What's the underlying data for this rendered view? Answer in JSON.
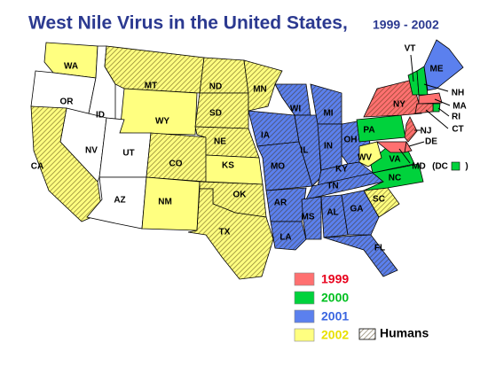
{
  "title": "West Nile Virus in the United States,",
  "subtitle": "1999 - 2002",
  "legend": [
    {
      "label": "1999",
      "color": "#ff7070",
      "text_color": "#e8001c"
    },
    {
      "label": "2000",
      "color": "#00d23c",
      "text_color": "#00c020"
    },
    {
      "label": "2001",
      "color": "#5b80ee",
      "text_color": "#3a66e0"
    },
    {
      "label": "2002",
      "color": "#ffff80",
      "text_color": "#e8e000"
    }
  ],
  "humans_label": "Humans",
  "dc": {
    "open": "(DC",
    "year": "2000",
    "close": ")"
  },
  "states": [
    {
      "label": "WA",
      "year": "2002",
      "humans": false
    },
    {
      "label": "OR",
      "year": null,
      "humans": false
    },
    {
      "label": "ID",
      "year": null,
      "humans": false
    },
    {
      "label": "MT",
      "year": "2002",
      "humans": true
    },
    {
      "label": "WY",
      "year": "2002",
      "humans": false
    },
    {
      "label": "NV",
      "year": null,
      "humans": false
    },
    {
      "label": "CA",
      "year": "2002",
      "humans": true
    },
    {
      "label": "UT",
      "year": null,
      "humans": false
    },
    {
      "label": "AZ",
      "year": null,
      "humans": false
    },
    {
      "label": "CO",
      "year": "2002",
      "humans": true
    },
    {
      "label": "NM",
      "year": "2002",
      "humans": false
    },
    {
      "label": "ND",
      "year": "2002",
      "humans": true
    },
    {
      "label": "SD",
      "year": "2002",
      "humans": true
    },
    {
      "label": "NE",
      "year": "2002",
      "humans": true
    },
    {
      "label": "KS",
      "year": "2002",
      "humans": false
    },
    {
      "label": "OK",
      "year": "2002",
      "humans": true
    },
    {
      "label": "TX",
      "year": "2002",
      "humans": true
    },
    {
      "label": "MN",
      "year": "2002",
      "humans": true
    },
    {
      "label": "IA",
      "year": "2001",
      "humans": true
    },
    {
      "label": "MO",
      "year": "2001",
      "humans": true
    },
    {
      "label": "AR",
      "year": "2001",
      "humans": true
    },
    {
      "label": "LA",
      "year": "2001",
      "humans": true
    },
    {
      "label": "WI",
      "year": "2001",
      "humans": true
    },
    {
      "label": "IL",
      "year": "2001",
      "humans": true
    },
    {
      "label": "MI",
      "year": "2001",
      "humans": true
    },
    {
      "label": "IN",
      "year": "2001",
      "humans": true
    },
    {
      "label": "OH",
      "year": "2001",
      "humans": true
    },
    {
      "label": "KY",
      "year": "2001",
      "humans": true
    },
    {
      "label": "TN",
      "year": "2001",
      "humans": true
    },
    {
      "label": "MS",
      "year": "2001",
      "humans": true
    },
    {
      "label": "AL",
      "year": "2001",
      "humans": true
    },
    {
      "label": "GA",
      "year": "2001",
      "humans": true
    },
    {
      "label": "FL",
      "year": "2001",
      "humans": true
    },
    {
      "label": "SC",
      "year": "2002",
      "humans": true
    },
    {
      "label": "NC",
      "year": "2000",
      "humans": false
    },
    {
      "label": "VA",
      "year": "2000",
      "humans": false
    },
    {
      "label": "WV",
      "year": "2002",
      "humans": false
    },
    {
      "label": "PA",
      "year": "2000",
      "humans": false
    },
    {
      "label": "NY",
      "year": "1999",
      "humans": true
    },
    {
      "label": "NJ",
      "year": "1999",
      "humans": true
    },
    {
      "label": "DE",
      "year": "1999",
      "humans": false
    },
    {
      "label": "MD",
      "year": "1999",
      "humans": false
    },
    {
      "label": "VT",
      "year": "2000",
      "humans": false
    },
    {
      "label": "NH",
      "year": "2000",
      "humans": false
    },
    {
      "label": "ME",
      "year": "2001",
      "humans": false
    },
    {
      "label": "MA",
      "year": "1999",
      "humans": false
    },
    {
      "label": "RI",
      "year": "2000",
      "humans": false
    },
    {
      "label": "CT",
      "year": "1999",
      "humans": true
    }
  ]
}
